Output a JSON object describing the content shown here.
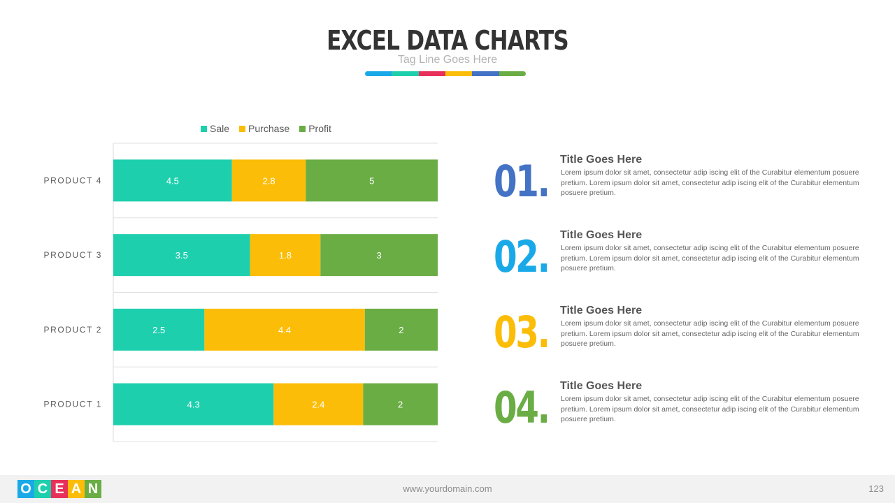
{
  "header": {
    "title": "EXCEL DATA CHARTS",
    "tagline": "Tag Line Goes Here",
    "color_strip": [
      "#1aa9e8",
      "#1ecfae",
      "#e8315a",
      "#fbbd08",
      "#4472c4",
      "#6aad45"
    ]
  },
  "chart_data": {
    "type": "bar",
    "orientation": "horizontal",
    "stacked": true,
    "categories": [
      "PRODUCT 1",
      "PRODUCT 2",
      "PRODUCT 3",
      "PRODUCT 4"
    ],
    "series": [
      {
        "name": "Sale",
        "color": "#1ecfae",
        "values": [
          4.3,
          2.5,
          3.5,
          4.5
        ]
      },
      {
        "name": "Purchase",
        "color": "#fbbd08",
        "values": [
          2.4,
          4.4,
          1.8,
          2.8
        ]
      },
      {
        "name": "Profit",
        "color": "#6aad45",
        "values": [
          2,
          2,
          3,
          5
        ]
      }
    ],
    "legend_position": "top",
    "data_labels": true,
    "grid": true
  },
  "items": [
    {
      "number": "01.",
      "color": "#4472c4",
      "title": "Title Goes Here",
      "body": "Lorem ipsum dolor sit amet, consectetur adip  iscing elit of the Curabitur elementum posuere pretium. Lorem ipsum dolor sit amet, consectetur adip  iscing elit of the Curabitur elementum posuere pretium."
    },
    {
      "number": "02.",
      "color": "#1aa9e8",
      "title": "Title Goes Here",
      "body": "Lorem ipsum dolor sit amet, consectetur adip  iscing elit of the Curabitur elementum posuere pretium. Lorem ipsum dolor sit amet, consectetur adip  iscing elit of the Curabitur elementum posuere pretium."
    },
    {
      "number": "03.",
      "color": "#fbbd08",
      "title": "Title Goes Here",
      "body": "Lorem ipsum dolor sit amet, consectetur adip  iscing elit of the Curabitur elementum posuere pretium. Lorem ipsum dolor sit amet, consectetur adip  iscing elit of the Curabitur elementum posuere pretium."
    },
    {
      "number": "04.",
      "color": "#6aad45",
      "title": "Title Goes Here",
      "body": "Lorem ipsum dolor sit amet, consectetur adip  iscing elit of the Curabitur elementum posuere pretium. Lorem ipsum dolor sit amet, consectetur adip  iscing elit of the Curabitur elementum posuere pretium."
    }
  ],
  "footer": {
    "logo_letters": [
      "O",
      "C",
      "E",
      "A",
      "N"
    ],
    "logo_colors": [
      "#1aa9e8",
      "#1ecfae",
      "#e8315a",
      "#fbbd08",
      "#6aad45"
    ],
    "url": "www.yourdomain.com",
    "page_number": "123"
  }
}
